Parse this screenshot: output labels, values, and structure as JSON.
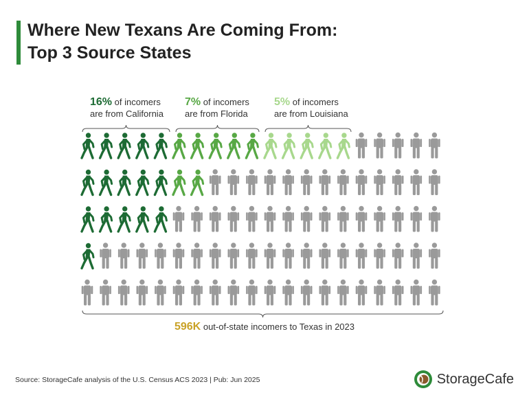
{
  "header": {
    "title_line1": "Where New Texans Are Coming From:",
    "title_line2": "Top 3 Source States"
  },
  "annotations": [
    {
      "pct": "16%",
      "line1_rest": " of incomers",
      "line2": "are from California"
    },
    {
      "pct": "7%",
      "line1_rest": " of incomers",
      "line2": "are from Florida"
    },
    {
      "pct": "5%",
      "line1_rest": " of incomers",
      "line2": "are from Louisiana"
    }
  ],
  "total": {
    "value": "596K",
    "text": " out-of-state incomers to Texas in 2023"
  },
  "footer": {
    "source": "Source: StorageCafe analysis of the U.S. Census ACS 2023 | Pub: Jun 2025",
    "brand": "StorageCafe"
  },
  "chart_data": {
    "type": "pictogram",
    "rows": 5,
    "columns": 20,
    "total_icons": 100,
    "series": [
      {
        "name": "California",
        "icons": 16,
        "value_percent": 16,
        "color": "#1d6b34"
      },
      {
        "name": "Florida",
        "icons": 7,
        "value_percent": 7,
        "color": "#58a845"
      },
      {
        "name": "Louisiana",
        "icons": 5,
        "value_percent": 5,
        "color": "#a8d88d"
      }
    ],
    "remainder": {
      "icons": 72,
      "value_percent": 72,
      "color": "#9a9a9a"
    },
    "total_incomers": "596K",
    "year": 2023
  }
}
